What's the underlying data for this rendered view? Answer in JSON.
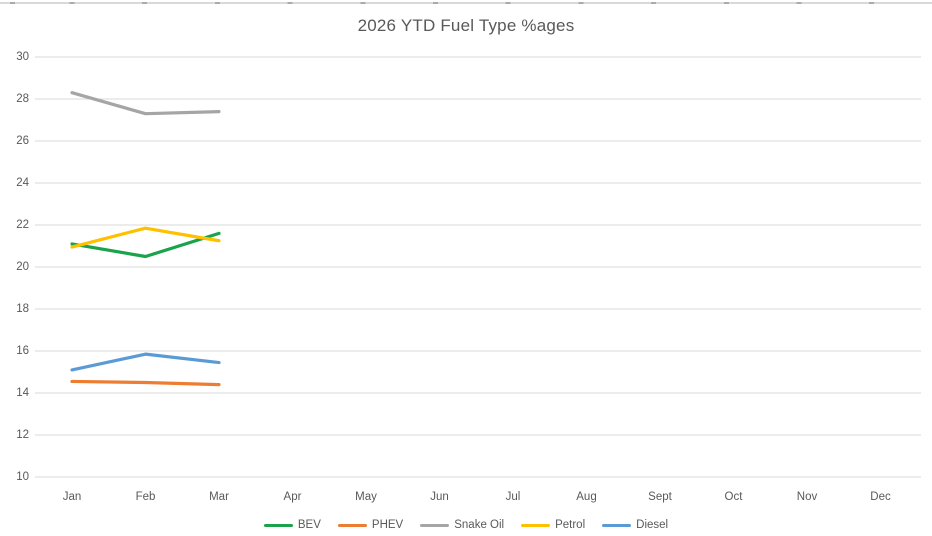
{
  "chart": {
    "title": "2026 YTD Fuel Type %ages",
    "text_color": "#595959",
    "gridline_color": "#D9D9D9",
    "background": "#FFFFFF"
  },
  "chart_data": {
    "type": "line",
    "title": "2026 YTD Fuel Type %ages",
    "categories": [
      "Jan",
      "Feb",
      "Mar",
      "Apr",
      "May",
      "Jun",
      "Jul",
      "Aug",
      "Sept",
      "Oct",
      "Nov",
      "Dec"
    ],
    "y_ticks": [
      30,
      28,
      26,
      24,
      22,
      20,
      18,
      16,
      14,
      12,
      10
    ],
    "ylim": [
      10,
      30
    ],
    "xlabel": "",
    "ylabel": "",
    "grid": true,
    "legend_position": "bottom",
    "series": [
      {
        "name": "BEV",
        "color": "#1AA34A",
        "values": [
          21.1,
          20.5,
          21.6
        ]
      },
      {
        "name": "PHEV",
        "color": "#ED7D31",
        "values": [
          14.55,
          14.5,
          14.4
        ]
      },
      {
        "name": "Snake Oil",
        "color": "#A5A5A5",
        "values": [
          28.3,
          27.3,
          27.4
        ]
      },
      {
        "name": "Petrol",
        "color": "#FFC000",
        "values": [
          20.95,
          21.85,
          21.25
        ]
      },
      {
        "name": "Diesel",
        "color": "#5B9BD5",
        "values": [
          15.1,
          15.85,
          15.45
        ]
      }
    ]
  }
}
